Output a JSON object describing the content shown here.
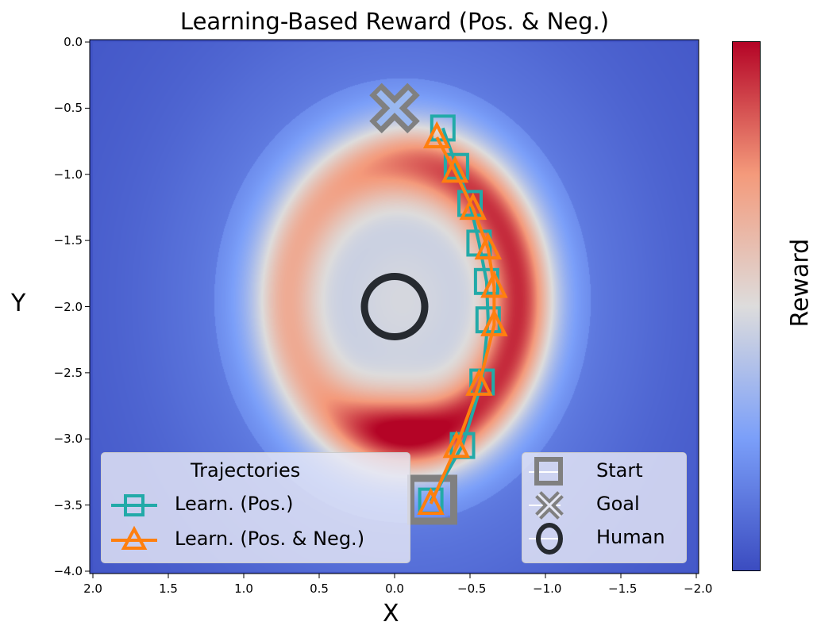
{
  "chart_data": {
    "type": "heatmap",
    "title": "Learning-Based Reward (Pos. & Neg.)",
    "xlabel": "X",
    "ylabel": "Y",
    "colorbar_label": "Reward",
    "colormap": "coolwarm",
    "xlim": [
      2.0,
      -2.0
    ],
    "ylim": [
      -4.0,
      0.0
    ],
    "x_inverted": true,
    "xticks": [
      "2.0",
      "1.5",
      "1.0",
      "0.5",
      "0.0",
      "−0.5",
      "−1.0",
      "−1.5",
      "−2.0"
    ],
    "xtick_values": [
      2.0,
      1.5,
      1.0,
      0.5,
      0.0,
      -0.5,
      -1.0,
      -1.5,
      -2.0
    ],
    "yticks": [
      "0.0",
      "−0.5",
      "−1.0",
      "−1.5",
      "−2.0",
      "−2.5",
      "−3.0",
      "−3.5",
      "−4.0"
    ],
    "ytick_values": [
      0.0,
      -0.5,
      -1.0,
      -1.5,
      -2.0,
      -2.5,
      -3.0,
      -3.5,
      -4.0
    ],
    "grid": false,
    "series": [
      {
        "name": "Learn. (Pos.)",
        "marker": "square",
        "color": "#22aaa8",
        "x": [
          -0.32,
          -0.41,
          -0.5,
          -0.56,
          -0.61,
          -0.62,
          -0.58,
          -0.45,
          -0.24
        ],
        "y": [
          -0.65,
          -0.94,
          -1.22,
          -1.52,
          -1.81,
          -2.1,
          -2.57,
          -3.05,
          -3.47
        ]
      },
      {
        "name": "Learn. (Pos. & Neg.)",
        "marker": "triangle",
        "color": "#ff7f0e",
        "x": [
          -0.28,
          -0.4,
          -0.52,
          -0.62,
          -0.66,
          -0.66,
          -0.56,
          -0.41,
          -0.24
        ],
        "y": [
          -0.72,
          -0.98,
          -1.26,
          -1.56,
          -1.85,
          -2.14,
          -2.59,
          -3.06,
          -3.49
        ]
      }
    ],
    "points": [
      {
        "name": "Start",
        "marker": "square",
        "color": "#808080",
        "x": -0.25,
        "y": -3.46
      },
      {
        "name": "Goal",
        "marker": "x",
        "color": "#808080",
        "x": 0.0,
        "y": -0.5
      },
      {
        "name": "Human",
        "marker": "circle",
        "color": "#262a30",
        "x": 0.0,
        "y": -2.0
      }
    ],
    "legends": [
      {
        "title": "Trajectories",
        "placement": "lower-left",
        "entries": [
          "Learn. (Pos.)",
          "Learn. (Pos. & Neg.)"
        ]
      },
      {
        "title": "",
        "placement": "lower-right",
        "entries": [
          "Start",
          "Goal",
          "Human"
        ]
      }
    ]
  }
}
